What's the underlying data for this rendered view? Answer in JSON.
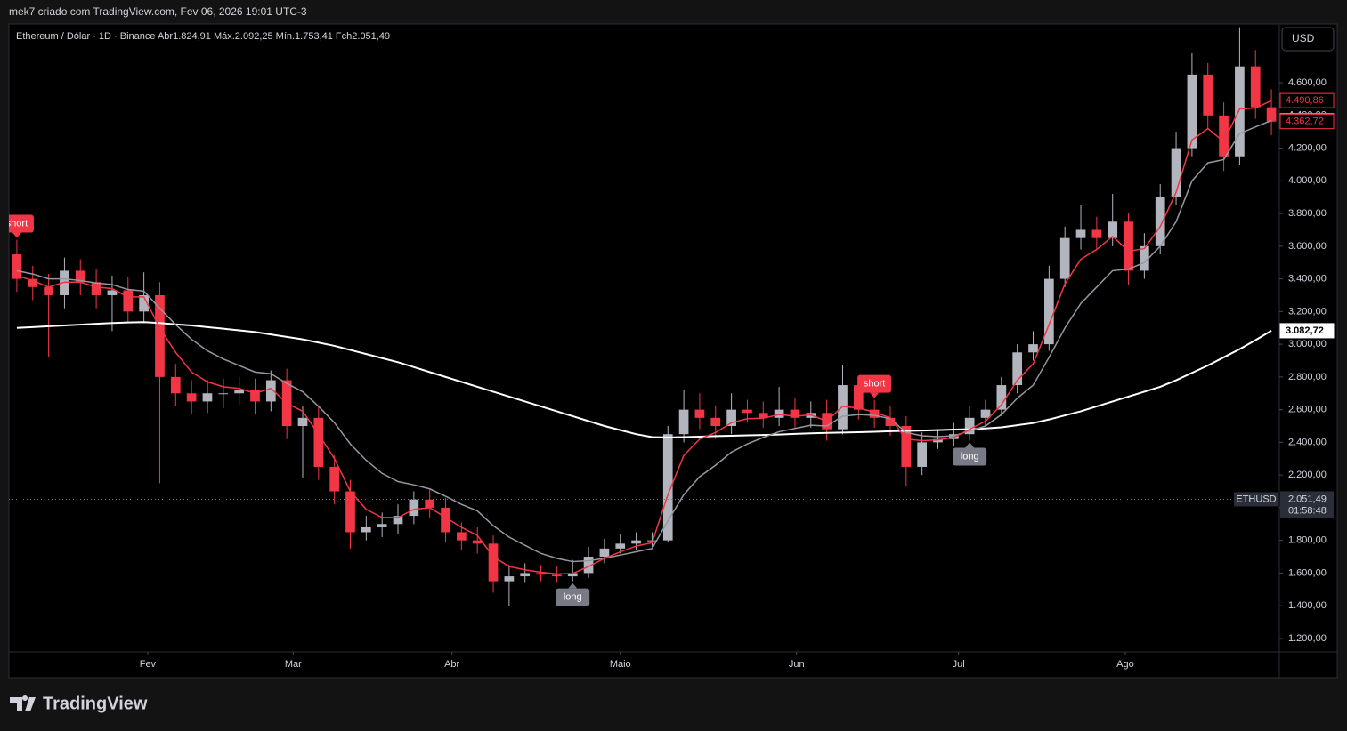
{
  "header": {
    "title": "mek7 criado com TradingView.com, Fev 06, 2026 19:01 UTC-3",
    "logo": "TradingView",
    "currency_button": "USD"
  },
  "chart_data": {
    "type": "candlestick",
    "legend": "Ethereum / Dólar · 1D · Binance  Abr1.824,91  Máx.2.092,25  Mín.1.753,41  Fch2.051,49",
    "open": [
      3550,
      3400,
      3350,
      3300,
      3450,
      3380,
      3300,
      3330,
      3200,
      3300,
      2800,
      2700,
      2650,
      2700,
      2700,
      2720,
      2650,
      2780,
      2500,
      2550,
      2250,
      2100,
      1850,
      1880,
      1900,
      1950,
      2050,
      2000,
      1850,
      1800,
      1780,
      1550,
      1580,
      1600,
      1590,
      1580,
      1600,
      1700,
      1750,
      1780,
      1800,
      1800,
      2450,
      2600,
      2550,
      2500,
      2600,
      2580,
      2550,
      2600,
      2550,
      2580,
      2480,
      2750,
      2600,
      2550,
      2500,
      2250,
      2400,
      2420,
      2450,
      2550,
      2600,
      2750,
      2950,
      3000,
      3400,
      3650,
      3700,
      3650,
      3750,
      3450,
      3600,
      3900,
      4200,
      4650,
      4400,
      4150,
      4700,
      4450
    ],
    "high": [
      3640,
      3480,
      3430,
      3530,
      3520,
      3460,
      3420,
      3410,
      3440,
      3380,
      2880,
      2780,
      2780,
      2790,
      2800,
      2790,
      2840,
      2850,
      2620,
      2620,
      2320,
      2170,
      1950,
      1970,
      2020,
      2100,
      2110,
      2060,
      1910,
      1880,
      1830,
      1650,
      1660,
      1650,
      1640,
      1680,
      1760,
      1810,
      1840,
      1850,
      1850,
      2500,
      2720,
      2700,
      2620,
      2700,
      2660,
      2650,
      2740,
      2670,
      2650,
      2660,
      2870,
      2800,
      2660,
      2620,
      2560,
      2460,
      2480,
      2520,
      2620,
      2660,
      2800,
      3000,
      3080,
      3480,
      3720,
      3850,
      3780,
      3920,
      3800,
      3680,
      3980,
      4300,
      4780,
      4720,
      4480,
      4940,
      4800,
      4560
    ],
    "low": [
      3320,
      3270,
      2920,
      3220,
      3300,
      3220,
      3080,
      3130,
      3130,
      2150,
      2620,
      2570,
      2580,
      2610,
      2630,
      2570,
      2590,
      2420,
      2180,
      2170,
      2020,
      1750,
      1800,
      1820,
      1840,
      1900,
      1940,
      1790,
      1740,
      1720,
      1480,
      1400,
      1540,
      1550,
      1540,
      1550,
      1570,
      1660,
      1720,
      1740,
      1760,
      1790,
      2400,
      2480,
      2420,
      2450,
      2520,
      2490,
      2500,
      2490,
      2490,
      2410,
      2450,
      2540,
      2490,
      2440,
      2130,
      2200,
      2360,
      2380,
      2410,
      2500,
      2560,
      2700,
      2900,
      2960,
      3350,
      3580,
      3580,
      3600,
      3360,
      3400,
      3550,
      3850,
      4150,
      4320,
      4060,
      4100,
      4380,
      4280
    ],
    "close": [
      3400,
      3350,
      3300,
      3450,
      3380,
      3300,
      3330,
      3200,
      3300,
      2800,
      2700,
      2650,
      2700,
      2700,
      2720,
      2650,
      2780,
      2500,
      2550,
      2250,
      2100,
      1850,
      1880,
      1900,
      1950,
      2050,
      2000,
      1850,
      1800,
      1780,
      1550,
      1580,
      1600,
      1590,
      1580,
      1600,
      1700,
      1750,
      1780,
      1800,
      1800,
      2450,
      2600,
      2550,
      2500,
      2600,
      2580,
      2550,
      2600,
      2550,
      2580,
      2480,
      2750,
      2600,
      2550,
      2500,
      2250,
      2400,
      2420,
      2450,
      2550,
      2600,
      2750,
      2950,
      3000,
      3400,
      3650,
      3700,
      3650,
      3750,
      3450,
      3600,
      3900,
      4200,
      4650,
      4400,
      4150,
      4700,
      4450,
      4362.72
    ],
    "close_label": "4.362,72",
    "up_color": "#b2b5be",
    "down_color": "#f23645",
    "series": [
      {
        "color": "#ffffff",
        "values": [
          3100,
          3105,
          3110,
          3115,
          3120,
          3125,
          3130,
          3133,
          3135,
          3130,
          3122,
          3115,
          3105,
          3095,
          3085,
          3075,
          3060,
          3045,
          3030,
          3010,
          2990,
          2965,
          2940,
          2915,
          2890,
          2860,
          2830,
          2800,
          2770,
          2740,
          2710,
          2680,
          2650,
          2620,
          2590,
          2560,
          2530,
          2500,
          2475,
          2450,
          2432,
          2430,
          2432,
          2435,
          2438,
          2440,
          2443,
          2445,
          2448,
          2452,
          2455,
          2458,
          2460,
          2462,
          2465,
          2468,
          2470,
          2472,
          2475,
          2478,
          2480,
          2485,
          2492,
          2505,
          2518,
          2540,
          2565,
          2590,
          2620,
          2650,
          2680,
          2710,
          2740,
          2780,
          2825,
          2870,
          2920,
          2970,
          3025,
          3082.72
        ],
        "last_label": "3.082,72"
      },
      {
        "color": "#9598a1",
        "values": [
          3450,
          3430,
          3400,
          3400,
          3390,
          3375,
          3365,
          3335,
          3325,
          3220,
          3120,
          3030,
          2960,
          2910,
          2870,
          2830,
          2820,
          2760,
          2710,
          2620,
          2520,
          2390,
          2290,
          2210,
          2160,
          2140,
          2115,
          2070,
          2020,
          1980,
          1890,
          1820,
          1770,
          1720,
          1690,
          1670,
          1675,
          1690,
          1710,
          1730,
          1750,
          1920,
          2080,
          2190,
          2260,
          2340,
          2390,
          2430,
          2465,
          2485,
          2505,
          2500,
          2560,
          2570,
          2565,
          2545,
          2460,
          2440,
          2435,
          2440,
          2470,
          2500,
          2570,
          2670,
          2750,
          2920,
          3100,
          3250,
          3350,
          3450,
          3460,
          3500,
          3600,
          3750,
          4000,
          4110,
          4130,
          4290,
          4330,
          4368.8
        ],
        "last_label": "4.368,80"
      },
      {
        "color": "#f23645",
        "values": [
          3420,
          3390,
          3350,
          3380,
          3380,
          3350,
          3340,
          3290,
          3290,
          3100,
          2950,
          2830,
          2770,
          2740,
          2730,
          2700,
          2730,
          2640,
          2590,
          2450,
          2300,
          2100,
          1990,
          1940,
          1940,
          1990,
          2000,
          1940,
          1880,
          1830,
          1700,
          1640,
          1620,
          1605,
          1595,
          1597,
          1640,
          1690,
          1730,
          1765,
          1785,
          2080,
          2320,
          2420,
          2460,
          2520,
          2545,
          2548,
          2570,
          2560,
          2568,
          2530,
          2620,
          2610,
          2585,
          2550,
          2420,
          2410,
          2415,
          2430,
          2480,
          2530,
          2630,
          2780,
          2880,
          3120,
          3370,
          3520,
          3580,
          3660,
          3570,
          3585,
          3720,
          3930,
          4250,
          4320,
          4240,
          4440,
          4445,
          4490.86
        ],
        "last_label": "4.490,86"
      }
    ],
    "annotations": [
      {
        "text": "short",
        "index": 0
      },
      {
        "text": "long",
        "index": 35
      },
      {
        "text": "short",
        "index": 54
      },
      {
        "text": "long",
        "index": 60
      }
    ],
    "price_line": {
      "symbol": "ETHUSD",
      "value": 2051.49,
      "label": "2.051,49",
      "countdown": "01:58:48"
    },
    "ylim": [
      1118,
      4954
    ],
    "yticks": [
      {
        "value": 1200,
        "label": "1.200,00"
      },
      {
        "value": 1400,
        "label": "1.400,00"
      },
      {
        "value": 1600,
        "label": "1.600,00"
      },
      {
        "value": 1800,
        "label": "1.800,00"
      },
      {
        "value": 2000,
        "label": "2.000,00"
      },
      {
        "value": 2200,
        "label": "2.200,00"
      },
      {
        "value": 2400,
        "label": "2.400,00"
      },
      {
        "value": 2600,
        "label": "2.600,00"
      },
      {
        "value": 2800,
        "label": "2.800,00"
      },
      {
        "value": 3000,
        "label": "3.000,00"
      },
      {
        "value": 3200,
        "label": "3.200,00"
      },
      {
        "value": 3400,
        "label": "3.400,00"
      },
      {
        "value": 3600,
        "label": "3.600,00"
      },
      {
        "value": 3800,
        "label": "3.800,00"
      },
      {
        "value": 4000,
        "label": "4.000,00"
      },
      {
        "value": 4200,
        "label": "4.200,00"
      },
      {
        "value": 4400,
        "label": "4.400,00"
      },
      {
        "value": 4600,
        "label": "4.600,00"
      }
    ],
    "xticks": [
      {
        "value": 8.24,
        "label": "Fev"
      },
      {
        "value": 17.4,
        "label": "Mar"
      },
      {
        "value": 27.4,
        "label": "Abr"
      },
      {
        "value": 38.0,
        "label": "Maio"
      },
      {
        "value": 49.1,
        "label": "Jun"
      },
      {
        "value": 59.3,
        "label": "Jul"
      },
      {
        "value": 69.8,
        "label": "Ago"
      }
    ],
    "grid": false
  }
}
